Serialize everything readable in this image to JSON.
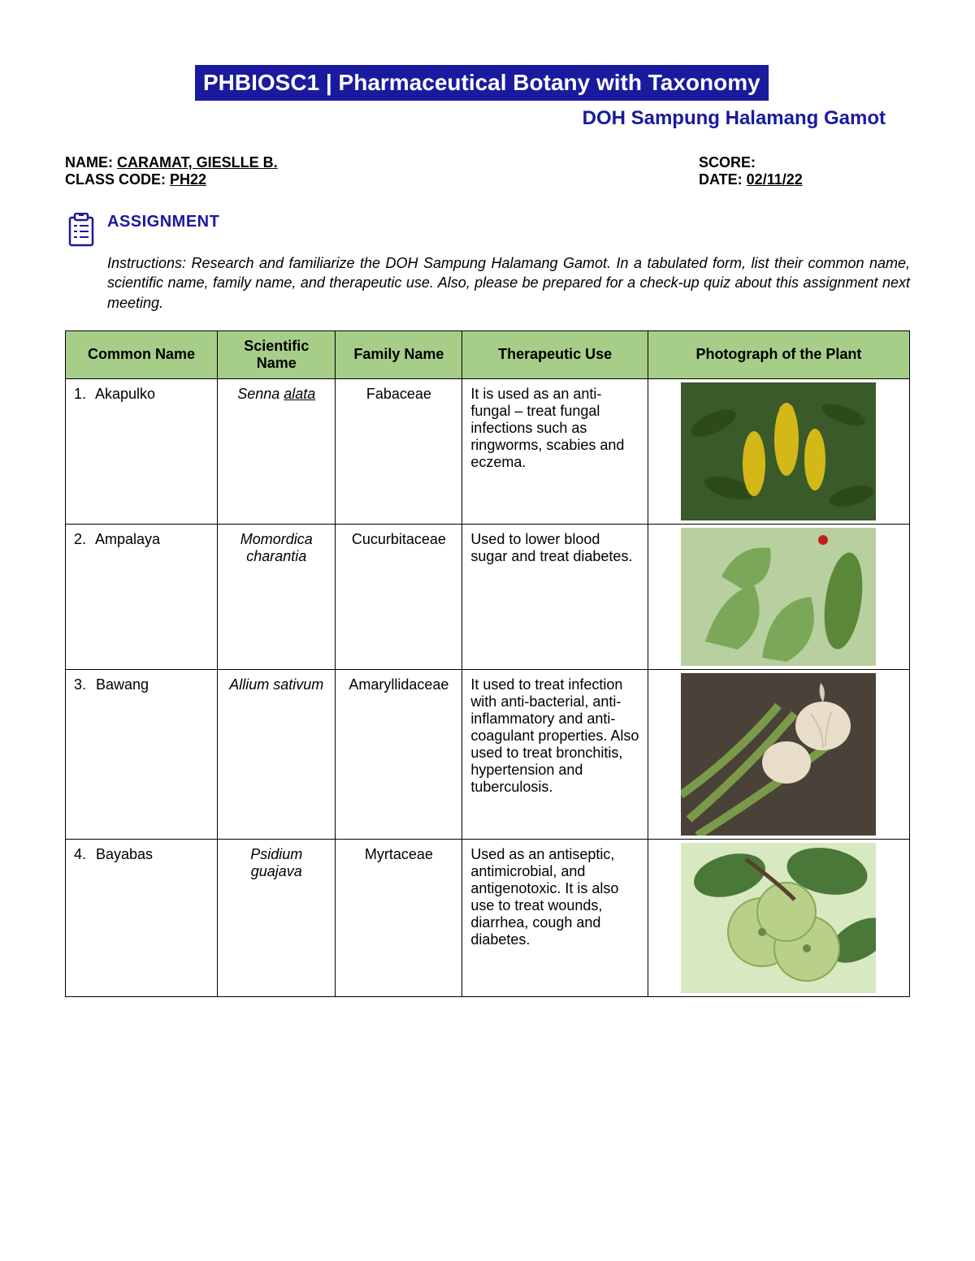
{
  "header": {
    "banner": "PHBIOSC1  |  Pharmaceutical Botany with Taxonomy",
    "subtitle": "DOH Sampung Halamang Gamot"
  },
  "student": {
    "name_label": "NAME: ",
    "name_value": "CARAMAT, GIESLLE B.",
    "class_label": "CLASS CODE: ",
    "class_value": "PH22",
    "score_label": "SCORE:",
    "date_label": "DATE: ",
    "date_value": "02/11/22"
  },
  "assignment": {
    "title": "ASSIGNMENT",
    "instructions": "Instructions: Research and familiarize the DOH Sampung Halamang Gamot. In a tabulated form, list their common name, scientific name, family name, and therapeutic use. Also, please be prepared for a check-up quiz about this assignment next meeting."
  },
  "table": {
    "headers": {
      "common": "Common Name",
      "scientific": "Scientific Name",
      "family": "Family Name",
      "use": "Therapeutic Use",
      "photo": "Photograph of the Plant"
    },
    "rows": [
      {
        "num": "1.",
        "common": "Akapulko",
        "sci_genus": "Senna ",
        "sci_species": "alata",
        "sci_species_underline": true,
        "family": "Fabaceae",
        "use": "It is used as an anti-fungal – treat fungal infections such as ringworms, scabies and eczema.",
        "photo_bg": "#3a5a2a",
        "photo_fg": "#d4b818",
        "photo_type": "flowers"
      },
      {
        "num": "2.",
        "common": "Ampalaya",
        "sci_genus": "Momordica charantia",
        "sci_species": "",
        "sci_species_underline": false,
        "family": "Cucurbitaceae",
        "use": "Used to lower blood sugar and treat diabetes.",
        "photo_bg": "#7aa858",
        "photo_fg": "#5a8838",
        "photo_type": "leaves"
      },
      {
        "num": "3.",
        "common": "Bawang",
        "sci_genus": "Allium sativum",
        "sci_species": "",
        "sci_species_underline": false,
        "family": "Amaryllidaceae",
        "use": "It used to treat infection with anti-bacterial, anti-inflammatory and anti-coagulant properties. Also used to treat bronchitis, hypertension and tuberculosis.",
        "photo_bg": "#4a4238",
        "photo_fg": "#e8ddc8",
        "photo_type": "garlic"
      },
      {
        "num": "4.",
        "common": "Bayabas",
        "sci_genus": "Psidium guajava",
        "sci_species": "",
        "sci_species_underline": false,
        "family": "Myrtaceae",
        "use": "Used as an antiseptic, antimicrobial, and antigenotoxic. It is also use to treat wounds, diarrhea, cough and diabetes.",
        "photo_bg": "#8fb870",
        "photo_fg": "#b8d088",
        "photo_type": "guava"
      }
    ]
  },
  "colors": {
    "banner_bg": "#1a1a9e",
    "banner_fg": "#ffffff",
    "th_bg": "#a7ce88",
    "border": "#000000"
  }
}
